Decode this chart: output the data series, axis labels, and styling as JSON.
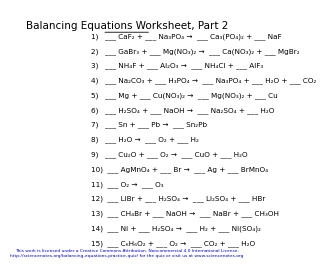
{
  "title": "Balancing Equations Worksheet, Part 2",
  "bg_color": "#ffffff",
  "text_color": "#000000",
  "title_fontsize": 7.5,
  "body_fontsize": 5.2,
  "footer_fontsize": 3.2,
  "lines": [
    "1)   ___ CaF₂ + ___ Na₃PO₄ →  ___ Ca₃(PO₄)₂ + ___ NaF",
    "2)   ___ GaBr₃ + ___ Mg(NO₃)₂ →  ___ Ca(NO₃)₂ + ___ MgBr₂",
    "3)   ___ NH₄F + ___ Al₂O₃ →  ___ NH₄Cl + ___ AlF₃",
    "4)   ___ Na₂CO₃ + ___ H₃PO₄ →  ___ Na₃PO₄ + ___ H₂O + ___ CO₂",
    "5)   ___ Mg + ___ Cu(NO₃)₂ →  ___ Mg(NO₃)₂ + ___ Cu",
    "6)   ___ H₂SO₄ + ___ NaOH →  ___ Na₂SO₄ + ___ H₂O",
    "7)   ___ Sn + ___ Pb →  ___ Sn₂Pb",
    "8)   ___ H₂O →  ___ O₂ + ___ H₂",
    "9)   ___ Cu₂O + ___ O₂ →  ___ CuO + ___ H₂O",
    "10)  ___ AgMnO₄ + ___ Br →  ___ Ag + ___ BrMnO₄",
    "11)  ___ O₂ →  ___ O₃",
    "12)  ___ LiBr + ___ H₂SO₄ →  ___ Li₂SO₄ + ___ HBr",
    "13)  ___ CH₄Br + ___ NaOH →  ___ NaBr + ___ CH₃OH",
    "14)  ___ Ni + ___ H₂SO₄ →  ___ H₂ + ___ Ni(SO₄)₂",
    "15)  ___ C₆H₆O₂ + ___ O₂ →  ___ CO₂ + ___ H₂O"
  ],
  "footer": "This work is licensed under a Creative Commons Attribution. Noncommercial 4.0 International License.\nhttp://sciencenotes.org/balancing-equations-practice-quiz/ for the quiz or visit us at www.sciencenotes.org"
}
